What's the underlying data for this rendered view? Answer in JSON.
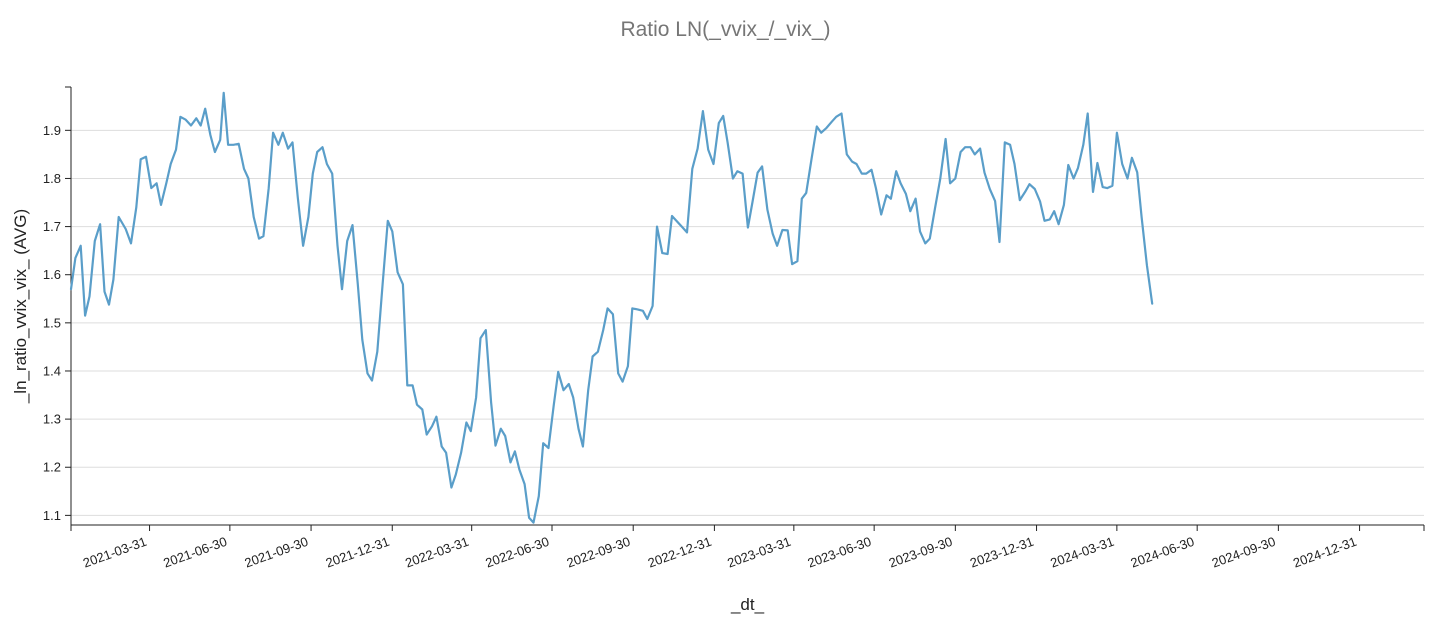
{
  "chart_data": {
    "type": "line",
    "title": "Ratio LN(_vvix_/_vix_)",
    "xlabel": "_dt_",
    "ylabel": "_ln_ratio_vvix_vix_ (AVG)",
    "x_range": [
      "2021-01-01",
      "2025-03-14"
    ],
    "ylim": [
      1.08,
      1.99
    ],
    "y_ticks": [
      1.1,
      1.2,
      1.3,
      1.4,
      1.5,
      1.6,
      1.7,
      1.8,
      1.9
    ],
    "x_ticks": [
      "2021-03-31",
      "2021-06-30",
      "2021-09-30",
      "2021-12-31",
      "2022-03-31",
      "2022-06-30",
      "2022-09-30",
      "2022-12-31",
      "2023-03-31",
      "2023-06-30",
      "2023-09-30",
      "2023-12-31",
      "2024-03-31",
      "2024-06-30",
      "2024-09-30",
      "2024-12-31"
    ],
    "grid": "horizontal",
    "series": [
      {
        "color": "#5a9ec9",
        "points": [
          [
            "2021-01-01",
            1.57
          ],
          [
            "2021-01-06",
            1.635
          ],
          [
            "2021-01-12",
            1.66
          ],
          [
            "2021-01-17",
            1.515
          ],
          [
            "2021-01-22",
            1.555
          ],
          [
            "2021-01-28",
            1.67
          ],
          [
            "2021-02-03",
            1.705
          ],
          [
            "2021-02-08",
            1.565
          ],
          [
            "2021-02-13",
            1.538
          ],
          [
            "2021-02-18",
            1.59
          ],
          [
            "2021-02-24",
            1.72
          ],
          [
            "2021-03-04",
            1.695
          ],
          [
            "2021-03-10",
            1.665
          ],
          [
            "2021-03-16",
            1.74
          ],
          [
            "2021-03-21",
            1.84
          ],
          [
            "2021-03-27",
            1.845
          ],
          [
            "2021-04-02",
            1.78
          ],
          [
            "2021-04-08",
            1.79
          ],
          [
            "2021-04-13",
            1.745
          ],
          [
            "2021-04-19",
            1.79
          ],
          [
            "2021-04-24",
            1.83
          ],
          [
            "2021-04-30",
            1.86
          ],
          [
            "2021-05-05",
            1.928
          ],
          [
            "2021-05-11",
            1.922
          ],
          [
            "2021-05-17",
            1.91
          ],
          [
            "2021-05-23",
            1.925
          ],
          [
            "2021-05-28",
            1.91
          ],
          [
            "2021-06-02",
            1.945
          ],
          [
            "2021-06-08",
            1.89
          ],
          [
            "2021-06-13",
            1.855
          ],
          [
            "2021-06-19",
            1.88
          ],
          [
            "2021-06-23",
            1.978
          ],
          [
            "2021-06-28",
            1.87
          ],
          [
            "2021-07-04",
            1.87
          ],
          [
            "2021-07-10",
            1.872
          ],
          [
            "2021-07-16",
            1.82
          ],
          [
            "2021-07-21",
            1.8
          ],
          [
            "2021-07-27",
            1.72
          ],
          [
            "2021-08-02",
            1.675
          ],
          [
            "2021-08-07",
            1.68
          ],
          [
            "2021-08-13",
            1.78
          ],
          [
            "2021-08-18",
            1.895
          ],
          [
            "2021-08-24",
            1.87
          ],
          [
            "2021-08-29",
            1.895
          ],
          [
            "2021-09-04",
            1.862
          ],
          [
            "2021-09-09",
            1.875
          ],
          [
            "2021-09-15",
            1.76
          ],
          [
            "2021-09-21",
            1.66
          ],
          [
            "2021-09-27",
            1.72
          ],
          [
            "2021-10-02",
            1.81
          ],
          [
            "2021-10-07",
            1.855
          ],
          [
            "2021-10-13",
            1.865
          ],
          [
            "2021-10-18",
            1.83
          ],
          [
            "2021-10-24",
            1.81
          ],
          [
            "2021-10-30",
            1.66
          ],
          [
            "2021-11-04",
            1.57
          ],
          [
            "2021-11-10",
            1.67
          ],
          [
            "2021-11-16",
            1.703
          ],
          [
            "2021-11-22",
            1.58
          ],
          [
            "2021-11-27",
            1.465
          ],
          [
            "2021-12-03",
            1.395
          ],
          [
            "2021-12-08",
            1.38
          ],
          [
            "2021-12-14",
            1.44
          ],
          [
            "2021-12-20",
            1.58
          ],
          [
            "2021-12-26",
            1.712
          ],
          [
            "2021-12-31",
            1.69
          ],
          [
            "2022-01-06",
            1.605
          ],
          [
            "2022-01-12",
            1.58
          ],
          [
            "2022-01-17",
            1.37
          ],
          [
            "2022-01-23",
            1.37
          ],
          [
            "2022-01-28",
            1.33
          ],
          [
            "2022-02-03",
            1.32
          ],
          [
            "2022-02-08",
            1.268
          ],
          [
            "2022-02-14",
            1.285
          ],
          [
            "2022-02-19",
            1.305
          ],
          [
            "2022-02-25",
            1.243
          ],
          [
            "2022-03-02",
            1.23
          ],
          [
            "2022-03-08",
            1.158
          ],
          [
            "2022-03-13",
            1.185
          ],
          [
            "2022-03-19",
            1.23
          ],
          [
            "2022-03-25",
            1.293
          ],
          [
            "2022-03-30",
            1.275
          ],
          [
            "2022-04-05",
            1.345
          ],
          [
            "2022-04-10",
            1.468
          ],
          [
            "2022-04-16",
            1.485
          ],
          [
            "2022-04-22",
            1.335
          ],
          [
            "2022-04-27",
            1.245
          ],
          [
            "2022-05-03",
            1.28
          ],
          [
            "2022-05-08",
            1.265
          ],
          [
            "2022-05-14",
            1.21
          ],
          [
            "2022-05-19",
            1.233
          ],
          [
            "2022-05-24",
            1.195
          ],
          [
            "2022-05-30",
            1.165
          ],
          [
            "2022-06-04",
            1.095
          ],
          [
            "2022-06-09",
            1.085
          ],
          [
            "2022-06-15",
            1.14
          ],
          [
            "2022-06-20",
            1.25
          ],
          [
            "2022-06-26",
            1.24
          ],
          [
            "2022-07-02",
            1.33
          ],
          [
            "2022-07-07",
            1.398
          ],
          [
            "2022-07-13",
            1.36
          ],
          [
            "2022-07-19",
            1.373
          ],
          [
            "2022-07-24",
            1.345
          ],
          [
            "2022-07-30",
            1.28
          ],
          [
            "2022-08-04",
            1.243
          ],
          [
            "2022-08-10",
            1.36
          ],
          [
            "2022-08-15",
            1.43
          ],
          [
            "2022-08-21",
            1.44
          ],
          [
            "2022-08-27",
            1.485
          ],
          [
            "2022-09-01",
            1.53
          ],
          [
            "2022-09-07",
            1.518
          ],
          [
            "2022-09-13",
            1.395
          ],
          [
            "2022-09-18",
            1.378
          ],
          [
            "2022-09-24",
            1.41
          ],
          [
            "2022-09-29",
            1.53
          ],
          [
            "2022-10-05",
            1.528
          ],
          [
            "2022-10-11",
            1.525
          ],
          [
            "2022-10-16",
            1.508
          ],
          [
            "2022-10-22",
            1.535
          ],
          [
            "2022-10-27",
            1.7
          ],
          [
            "2022-11-02",
            1.645
          ],
          [
            "2022-11-08",
            1.643
          ],
          [
            "2022-11-13",
            1.722
          ],
          [
            "2022-11-19",
            1.71
          ],
          [
            "2022-11-25",
            1.698
          ],
          [
            "2022-11-30",
            1.688
          ],
          [
            "2022-12-06",
            1.82
          ],
          [
            "2022-12-12",
            1.862
          ],
          [
            "2022-12-18",
            1.94
          ],
          [
            "2022-12-24",
            1.86
          ],
          [
            "2022-12-30",
            1.83
          ],
          [
            "2023-01-05",
            1.915
          ],
          [
            "2023-01-10",
            1.93
          ],
          [
            "2023-01-15",
            1.875
          ],
          [
            "2023-01-21",
            1.8
          ],
          [
            "2023-01-26",
            1.815
          ],
          [
            "2023-02-01",
            1.81
          ],
          [
            "2023-02-07",
            1.698
          ],
          [
            "2023-02-12",
            1.75
          ],
          [
            "2023-02-18",
            1.812
          ],
          [
            "2023-02-23",
            1.825
          ],
          [
            "2023-03-01",
            1.735
          ],
          [
            "2023-03-07",
            1.685
          ],
          [
            "2023-03-12",
            1.66
          ],
          [
            "2023-03-18",
            1.693
          ],
          [
            "2023-03-24",
            1.692
          ],
          [
            "2023-03-29",
            1.622
          ],
          [
            "2023-04-04",
            1.628
          ],
          [
            "2023-04-09",
            1.758
          ],
          [
            "2023-04-14",
            1.77
          ],
          [
            "2023-04-20",
            1.84
          ],
          [
            "2023-04-26",
            1.908
          ],
          [
            "2023-05-01",
            1.895
          ],
          [
            "2023-05-07",
            1.905
          ],
          [
            "2023-05-13",
            1.918
          ],
          [
            "2023-05-18",
            1.928
          ],
          [
            "2023-05-24",
            1.935
          ],
          [
            "2023-05-30",
            1.85
          ],
          [
            "2023-06-05",
            1.835
          ],
          [
            "2023-06-10",
            1.83
          ],
          [
            "2023-06-16",
            1.81
          ],
          [
            "2023-06-21",
            1.81
          ],
          [
            "2023-06-27",
            1.818
          ],
          [
            "2023-07-02",
            1.78
          ],
          [
            "2023-07-08",
            1.725
          ],
          [
            "2023-07-14",
            1.765
          ],
          [
            "2023-07-19",
            1.758
          ],
          [
            "2023-07-25",
            1.815
          ],
          [
            "2023-07-30",
            1.79
          ],
          [
            "2023-08-05",
            1.768
          ],
          [
            "2023-08-10",
            1.732
          ],
          [
            "2023-08-16",
            1.758
          ],
          [
            "2023-08-21",
            1.69
          ],
          [
            "2023-08-27",
            1.665
          ],
          [
            "2023-09-01",
            1.675
          ],
          [
            "2023-09-07",
            1.738
          ],
          [
            "2023-09-13",
            1.8
          ],
          [
            "2023-09-19",
            1.882
          ],
          [
            "2023-09-24",
            1.79
          ],
          [
            "2023-09-30",
            1.8
          ],
          [
            "2023-10-06",
            1.855
          ],
          [
            "2023-10-11",
            1.865
          ],
          [
            "2023-10-17",
            1.865
          ],
          [
            "2023-10-22",
            1.85
          ],
          [
            "2023-10-28",
            1.862
          ],
          [
            "2023-11-02",
            1.812
          ],
          [
            "2023-11-08",
            1.778
          ],
          [
            "2023-11-14",
            1.753
          ],
          [
            "2023-11-19",
            1.668
          ],
          [
            "2023-11-25",
            1.875
          ],
          [
            "2023-12-01",
            1.87
          ],
          [
            "2023-12-06",
            1.83
          ],
          [
            "2023-12-12",
            1.755
          ],
          [
            "2023-12-18",
            1.772
          ],
          [
            "2023-12-23",
            1.788
          ],
          [
            "2023-12-29",
            1.778
          ],
          [
            "2024-01-04",
            1.752
          ],
          [
            "2024-01-09",
            1.712
          ],
          [
            "2024-01-15",
            1.715
          ],
          [
            "2024-01-20",
            1.732
          ],
          [
            "2024-01-25",
            1.705
          ],
          [
            "2024-01-31",
            1.745
          ],
          [
            "2024-02-05",
            1.828
          ],
          [
            "2024-02-11",
            1.8
          ],
          [
            "2024-02-16",
            1.822
          ],
          [
            "2024-02-22",
            1.87
          ],
          [
            "2024-02-27",
            1.935
          ],
          [
            "2024-03-04",
            1.772
          ],
          [
            "2024-03-09",
            1.832
          ],
          [
            "2024-03-15",
            1.782
          ],
          [
            "2024-03-20",
            1.78
          ],
          [
            "2024-03-26",
            1.785
          ],
          [
            "2024-03-31",
            1.895
          ],
          [
            "2024-04-06",
            1.83
          ],
          [
            "2024-04-12",
            1.8
          ],
          [
            "2024-04-17",
            1.843
          ],
          [
            "2024-04-23",
            1.813
          ],
          [
            "2024-04-28",
            1.72
          ],
          [
            "2024-05-04",
            1.62
          ],
          [
            "2024-05-10",
            1.54
          ]
        ]
      }
    ]
  }
}
